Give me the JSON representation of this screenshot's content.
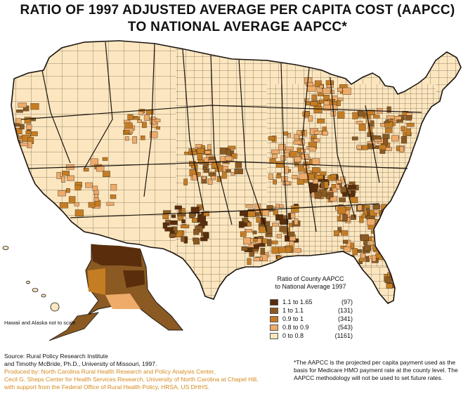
{
  "title": {
    "line1": "RATIO OF 1997 ADJUSTED AVERAGE PER CAPITA COST (AAPCC)",
    "line2": "TO NATIONAL AVERAGE AAPCC*"
  },
  "legend": {
    "heading_line1": "Ratio of County AAPCC",
    "heading_line2": "to National Average 1997",
    "items": [
      {
        "range": "1.1 to 1.65",
        "count": "(97)",
        "color": "#5a2e0c"
      },
      {
        "range": "1  to 1.1",
        "count": "(131)",
        "color": "#8a5a22"
      },
      {
        "range": "0.9 to 1",
        "count": "(341)",
        "color": "#c57d23"
      },
      {
        "range": "0.8 to 0.9",
        "count": "(543)",
        "color": "#eeab6a"
      },
      {
        "range": "0  to 0.8",
        "count": "(1161)",
        "color": "#fbe6bf"
      }
    ]
  },
  "notes": {
    "hawaii_alaska": "Hawaii and Alaska not to scale",
    "footnote": "*The AAPCC is the projected per capita payment used as the basis for Medicare HMO payment rate at the county level. The AAPCC methodology will not be used to set future rates."
  },
  "credits": {
    "source_line1": "Source: Rural Policy Research Institute",
    "source_line2": "and Timothy McBride, Ph.D., University of Missouri, 1997.",
    "produced_line1": "Produced by: North Carolina Rural Health Research and Policy Analysis Center,",
    "produced_line2": "Cecil G. Sheps Center for Health Services Research, University of North Carolina at Chapel Hill,",
    "produced_line3": "with support from the Federal Office of Rural Health Policy, HRSA, US DHHS."
  },
  "map": {
    "colors": {
      "class5": "#5a2e0c",
      "class4": "#8a5a22",
      "class3": "#c57d23",
      "class2": "#eeab6a",
      "class1": "#fbe6bf",
      "border": "#3a2a1a"
    }
  }
}
